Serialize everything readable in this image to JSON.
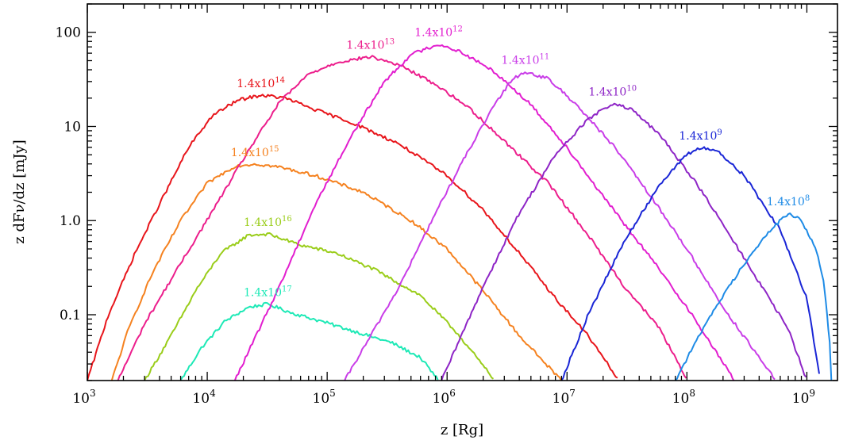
{
  "chart_data": {
    "type": "line",
    "xlabel": "z [Rg]",
    "ylabel": "z dFν/dz  [mJy]",
    "x_scale": "log",
    "y_scale": "log",
    "xlim": [
      1000,
      1800000000
    ],
    "ylim": [
      0.02,
      200
    ],
    "x_ticks": [
      {
        "value": 1000,
        "base": "10",
        "exp": "3"
      },
      {
        "value": 10000,
        "base": "10",
        "exp": "4"
      },
      {
        "value": 100000,
        "base": "10",
        "exp": "5"
      },
      {
        "value": 1000000,
        "base": "10",
        "exp": "6"
      },
      {
        "value": 10000000,
        "base": "10",
        "exp": "7"
      },
      {
        "value": 100000000,
        "base": "10",
        "exp": "8"
      },
      {
        "value": 1000000000,
        "base": "10",
        "exp": "9"
      }
    ],
    "y_ticks": [
      {
        "value": 0.1,
        "label": "0.1"
      },
      {
        "value": 1,
        "label": "1.0"
      },
      {
        "value": 10,
        "label": "10"
      },
      {
        "value": 100,
        "label": "100"
      }
    ],
    "grid": false,
    "legend": "inline labels at curve peaks",
    "series": [
      {
        "name_base": "1.4x10",
        "name_exp": "17",
        "color": "#1de9b6",
        "points": [
          [
            6000,
            0.02
          ],
          [
            9000,
            0.045
          ],
          [
            14000,
            0.085
          ],
          [
            22000,
            0.12
          ],
          [
            32000,
            0.13
          ],
          [
            50000,
            0.105
          ],
          [
            90000,
            0.085
          ],
          [
            180000,
            0.065
          ],
          [
            350000,
            0.05
          ],
          [
            600000,
            0.035
          ],
          [
            850000,
            0.02
          ]
        ]
      },
      {
        "name_base": "1.4x10",
        "name_exp": "16",
        "color": "#9acd1a",
        "points": [
          [
            3000,
            0.02
          ],
          [
            5000,
            0.06
          ],
          [
            8000,
            0.18
          ],
          [
            13000,
            0.45
          ],
          [
            22000,
            0.7
          ],
          [
            32000,
            0.72
          ],
          [
            60000,
            0.55
          ],
          [
            120000,
            0.45
          ],
          [
            250000,
            0.3
          ],
          [
            600000,
            0.16
          ],
          [
            1200000,
            0.065
          ],
          [
            2500000,
            0.02
          ]
        ]
      },
      {
        "name_base": "1.4x10",
        "name_exp": "15",
        "color": "#f58220",
        "points": [
          [
            1600,
            0.02
          ],
          [
            2200,
            0.07
          ],
          [
            3500,
            0.28
          ],
          [
            6000,
            1.0
          ],
          [
            10000,
            2.5
          ],
          [
            17000,
            3.8
          ],
          [
            25000,
            4.0
          ],
          [
            40000,
            3.7
          ],
          [
            80000,
            3.0
          ],
          [
            200000,
            2.0
          ],
          [
            500000,
            1.0
          ],
          [
            1000000,
            0.5
          ],
          [
            2000000,
            0.18
          ],
          [
            4000000,
            0.06
          ],
          [
            9000000,
            0.02
          ]
        ]
      },
      {
        "name_base": "1.4x10",
        "name_exp": "14",
        "color": "#e8151b",
        "points": [
          [
            1000,
            0.02
          ],
          [
            1500,
            0.1
          ],
          [
            2500,
            0.45
          ],
          [
            4000,
            1.5
          ],
          [
            7000,
            6.0
          ],
          [
            11000,
            13.0
          ],
          [
            18000,
            19.0
          ],
          [
            28000,
            21.5
          ],
          [
            45000,
            20.0
          ],
          [
            80000,
            15.0
          ],
          [
            160000,
            11.0
          ],
          [
            400000,
            6.5
          ],
          [
            1000000,
            3.0
          ],
          [
            2000000,
            1.3
          ],
          [
            4000000,
            0.45
          ],
          [
            8000000,
            0.15
          ],
          [
            15000000,
            0.06
          ],
          [
            27000000,
            0.02
          ]
        ]
      },
      {
        "name_base": "1.4x10",
        "name_exp": "13",
        "color": "#ec1e8c",
        "points": [
          [
            1800,
            0.02
          ],
          [
            3000,
            0.08
          ],
          [
            6000,
            0.35
          ],
          [
            12000,
            1.5
          ],
          [
            22000,
            5.5
          ],
          [
            40000,
            18.0
          ],
          [
            70000,
            36.0
          ],
          [
            120000,
            48.0
          ],
          [
            230000,
            55.0
          ],
          [
            400000,
            45.0
          ],
          [
            800000,
            28.0
          ],
          [
            1500000,
            16.0
          ],
          [
            3000000,
            7.0
          ],
          [
            7000000,
            2.5
          ],
          [
            15000000,
            0.7
          ],
          [
            30000000,
            0.2
          ],
          [
            60000000,
            0.07
          ],
          [
            100000000,
            0.02
          ]
        ]
      },
      {
        "name_base": "1.4x10",
        "name_exp": "12",
        "color": "#e21ecf",
        "points": [
          [
            17000,
            0.02
          ],
          [
            40000,
            0.2
          ],
          [
            80000,
            1.5
          ],
          [
            160000,
            8.0
          ],
          [
            300000,
            30.0
          ],
          [
            500000,
            58.0
          ],
          [
            850000,
            75.0
          ],
          [
            1300000,
            62.0
          ],
          [
            2500000,
            38.0
          ],
          [
            5000000,
            17.0
          ],
          [
            10000000,
            6.0
          ],
          [
            20000000,
            1.8
          ],
          [
            50000000,
            0.4
          ],
          [
            100000000,
            0.12
          ],
          [
            250000000,
            0.02
          ]
        ]
      },
      {
        "name_base": "1.4x10",
        "name_exp": "11",
        "color": "#c93de8",
        "points": [
          [
            140000,
            0.02
          ],
          [
            400000,
            0.2
          ],
          [
            800000,
            1.2
          ],
          [
            1500000,
            5.5
          ],
          [
            2500000,
            17.0
          ],
          [
            3500000,
            32.0
          ],
          [
            4500000,
            38.0
          ],
          [
            7000000,
            32.0
          ],
          [
            12000000,
            17.0
          ],
          [
            25000000,
            6.0
          ],
          [
            50000000,
            1.8
          ],
          [
            100000000,
            0.5
          ],
          [
            200000000,
            0.12
          ],
          [
            400000000,
            0.035
          ],
          [
            550000000,
            0.02
          ]
        ]
      },
      {
        "name_base": "1.4x10",
        "name_exp": "10",
        "color": "#8e25c6",
        "points": [
          [
            900000,
            0.02
          ],
          [
            2000000,
            0.2
          ],
          [
            4000000,
            1.2
          ],
          [
            8000000,
            5.0
          ],
          [
            15000000,
            12.0
          ],
          [
            24000000,
            17.5
          ],
          [
            35000000,
            15.0
          ],
          [
            60000000,
            8.0
          ],
          [
            120000000,
            2.5
          ],
          [
            300000000,
            0.4
          ],
          [
            700000000,
            0.07
          ],
          [
            1000000000,
            0.02
          ]
        ]
      },
      {
        "name_base": "1.4x10",
        "name_exp": "9",
        "color": "#1a26d6",
        "points": [
          [
            9000000,
            0.02
          ],
          [
            15000000,
            0.1
          ],
          [
            30000000,
            0.6
          ],
          [
            60000000,
            2.5
          ],
          [
            100000000,
            5.0
          ],
          [
            130000000,
            6.0
          ],
          [
            180000000,
            5.5
          ],
          [
            300000000,
            3.0
          ],
          [
            600000000,
            0.8
          ],
          [
            1000000000,
            0.15
          ],
          [
            1300000000,
            0.02
          ]
        ]
      },
      {
        "name_base": "1.4x10",
        "name_exp": "8",
        "color": "#1e8be6",
        "points": [
          [
            80000000,
            0.02
          ],
          [
            150000000,
            0.09
          ],
          [
            300000000,
            0.35
          ],
          [
            500000000,
            0.8
          ],
          [
            700000000,
            1.2
          ],
          [
            900000000,
            1.0
          ],
          [
            1200000000,
            0.5
          ],
          [
            1400000000,
            0.2
          ],
          [
            1550000000,
            0.05
          ],
          [
            1600000000,
            0.02
          ]
        ]
      }
    ]
  }
}
